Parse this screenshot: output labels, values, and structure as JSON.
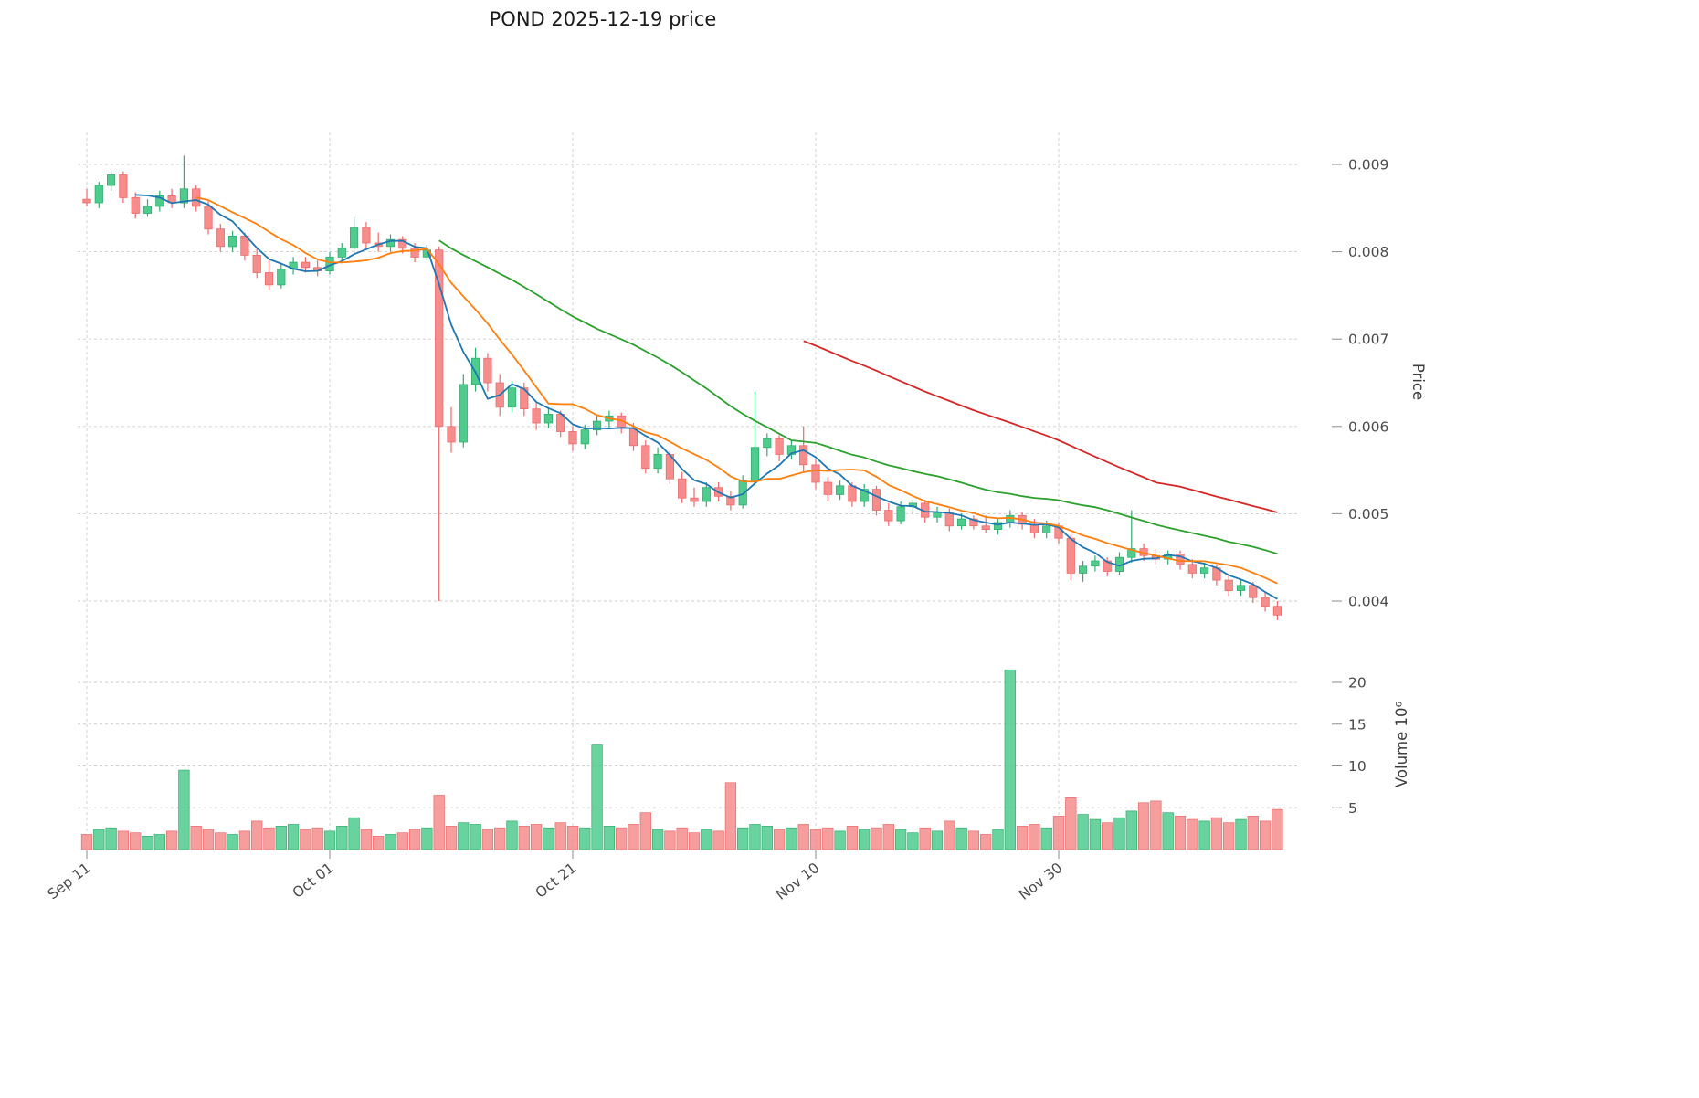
{
  "title": "POND  2025-12-19  price",
  "axes": {
    "price_label": "Price",
    "volume_label": "Volume  10⁶",
    "price_ticks": [
      0.004,
      0.005,
      0.006,
      0.007,
      0.008,
      0.009
    ],
    "volume_ticks": [
      5,
      10,
      15,
      20
    ],
    "x_ticks": [
      "Sep 11",
      "Oct 01",
      "Oct 21",
      "Nov 10",
      "Nov 30"
    ],
    "x_tick_indices": [
      0,
      20,
      40,
      60,
      80
    ]
  },
  "chart_data": {
    "type": "candlestick",
    "title": "POND 2025-12-19 price",
    "symbol": "POND",
    "frequency": "daily",
    "date_range": [
      "2025-09-11",
      "2025-12-18"
    ],
    "x_tick_dates": [
      "2025-09-11",
      "2025-10-01",
      "2025-10-21",
      "2025-11-10",
      "2025-11-30"
    ],
    "price_axis": {
      "label": "Price",
      "ticks": [
        0.004,
        0.005,
        0.006,
        0.007,
        0.008,
        0.009
      ],
      "range": [
        0.0036,
        0.0094
      ]
    },
    "volume_axis": {
      "label": "Volume 10⁶",
      "unit": 1000000,
      "ticks": [
        5,
        10,
        15,
        20
      ],
      "range": [
        0,
        23
      ]
    },
    "grid": true,
    "legend": false,
    "moving_averages": [
      {
        "window": 5,
        "color": "#1f77b4"
      },
      {
        "window": 10,
        "color": "#ff7f0e"
      },
      {
        "window": 30,
        "color": "#2ca02c"
      },
      {
        "window": 60,
        "color": "#d62728"
      }
    ],
    "colors": {
      "up": "#4ecb8d",
      "up_edge": "#2fae6e",
      "down": "#f58d8d",
      "down_edge": "#ec6a6a"
    },
    "ohlc": [
      [
        0.0086,
        0.00872,
        0.00852,
        0.00856
      ],
      [
        0.00856,
        0.0088,
        0.0085,
        0.00876
      ],
      [
        0.00876,
        0.00893,
        0.0087,
        0.00888
      ],
      [
        0.00888,
        0.00892,
        0.00856,
        0.00862
      ],
      [
        0.00862,
        0.00868,
        0.00838,
        0.00844
      ],
      [
        0.00844,
        0.0086,
        0.0084,
        0.00852
      ],
      [
        0.00852,
        0.0087,
        0.00846,
        0.00864
      ],
      [
        0.00864,
        0.00872,
        0.0085,
        0.00856
      ],
      [
        0.00856,
        0.0091,
        0.0085,
        0.00872
      ],
      [
        0.00872,
        0.00876,
        0.00846,
        0.00852
      ],
      [
        0.00852,
        0.00858,
        0.0082,
        0.00826
      ],
      [
        0.00826,
        0.00832,
        0.008,
        0.00806
      ],
      [
        0.00806,
        0.00824,
        0.008,
        0.00818
      ],
      [
        0.00818,
        0.00822,
        0.0079,
        0.00796
      ],
      [
        0.00796,
        0.00804,
        0.0077,
        0.00776
      ],
      [
        0.00776,
        0.0079,
        0.00756,
        0.00762
      ],
      [
        0.00762,
        0.00786,
        0.00758,
        0.0078
      ],
      [
        0.0078,
        0.00794,
        0.00774,
        0.00788
      ],
      [
        0.00788,
        0.00794,
        0.00776,
        0.00782
      ],
      [
        0.00782,
        0.0079,
        0.00772,
        0.00778
      ],
      [
        0.00778,
        0.008,
        0.00774,
        0.00794
      ],
      [
        0.00794,
        0.0081,
        0.00788,
        0.00804
      ],
      [
        0.00804,
        0.0084,
        0.00798,
        0.00828
      ],
      [
        0.00828,
        0.00834,
        0.00804,
        0.0081
      ],
      [
        0.0081,
        0.00822,
        0.008,
        0.00806
      ],
      [
        0.00806,
        0.0082,
        0.008,
        0.00814
      ],
      [
        0.00814,
        0.00818,
        0.00798,
        0.00804
      ],
      [
        0.00804,
        0.0081,
        0.00788,
        0.00794
      ],
      [
        0.00794,
        0.00808,
        0.0079,
        0.00802
      ],
      [
        0.00802,
        0.00806,
        0.004,
        0.006
      ],
      [
        0.006,
        0.00622,
        0.0057,
        0.00582
      ],
      [
        0.00582,
        0.0066,
        0.00576,
        0.00648
      ],
      [
        0.00648,
        0.0069,
        0.0064,
        0.00678
      ],
      [
        0.00678,
        0.00684,
        0.0064,
        0.0065
      ],
      [
        0.0065,
        0.0066,
        0.00612,
        0.00622
      ],
      [
        0.00622,
        0.00652,
        0.00616,
        0.00644
      ],
      [
        0.00644,
        0.0065,
        0.00612,
        0.0062
      ],
      [
        0.0062,
        0.00628,
        0.00596,
        0.00604
      ],
      [
        0.00604,
        0.00622,
        0.00598,
        0.00614
      ],
      [
        0.00614,
        0.00618,
        0.00588,
        0.00594
      ],
      [
        0.00594,
        0.006,
        0.00572,
        0.0058
      ],
      [
        0.0058,
        0.00602,
        0.00574,
        0.00596
      ],
      [
        0.00596,
        0.00612,
        0.0059,
        0.00606
      ],
      [
        0.00606,
        0.00618,
        0.00598,
        0.00612
      ],
      [
        0.00612,
        0.00616,
        0.00592,
        0.00598
      ],
      [
        0.00598,
        0.00604,
        0.00572,
        0.00578
      ],
      [
        0.00578,
        0.00584,
        0.00546,
        0.00552
      ],
      [
        0.00552,
        0.00576,
        0.00546,
        0.00568
      ],
      [
        0.00568,
        0.00572,
        0.00534,
        0.0054
      ],
      [
        0.0054,
        0.00548,
        0.00512,
        0.00518
      ],
      [
        0.00518,
        0.0053,
        0.00508,
        0.00514
      ],
      [
        0.00514,
        0.00536,
        0.00508,
        0.0053
      ],
      [
        0.0053,
        0.00536,
        0.00514,
        0.0052
      ],
      [
        0.0052,
        0.00526,
        0.00504,
        0.0051
      ],
      [
        0.0051,
        0.00544,
        0.00506,
        0.00538
      ],
      [
        0.00538,
        0.0064,
        0.00532,
        0.00576
      ],
      [
        0.00576,
        0.00592,
        0.00566,
        0.00586
      ],
      [
        0.00586,
        0.0059,
        0.0056,
        0.00568
      ],
      [
        0.00568,
        0.00584,
        0.00562,
        0.00578
      ],
      [
        0.00578,
        0.006,
        0.00548,
        0.00556
      ],
      [
        0.00556,
        0.00562,
        0.00528,
        0.00536
      ],
      [
        0.00536,
        0.00542,
        0.00514,
        0.00522
      ],
      [
        0.00522,
        0.00538,
        0.00516,
        0.00532
      ],
      [
        0.00532,
        0.00536,
        0.00508,
        0.00514
      ],
      [
        0.00514,
        0.00534,
        0.00508,
        0.00528
      ],
      [
        0.00528,
        0.00532,
        0.00498,
        0.00504
      ],
      [
        0.00504,
        0.00512,
        0.00486,
        0.00492
      ],
      [
        0.00492,
        0.00514,
        0.00488,
        0.00508
      ],
      [
        0.00508,
        0.00516,
        0.005,
        0.00512
      ],
      [
        0.00512,
        0.00516,
        0.0049,
        0.00496
      ],
      [
        0.00496,
        0.00508,
        0.0049,
        0.00502
      ],
      [
        0.00502,
        0.00506,
        0.0048,
        0.00486
      ],
      [
        0.00486,
        0.005,
        0.00482,
        0.00494
      ],
      [
        0.00494,
        0.00498,
        0.00482,
        0.00486
      ],
      [
        0.00486,
        0.00498,
        0.00478,
        0.00482
      ],
      [
        0.00482,
        0.00494,
        0.00476,
        0.0049
      ],
      [
        0.0049,
        0.00504,
        0.00484,
        0.00498
      ],
      [
        0.00498,
        0.00502,
        0.00482,
        0.00488
      ],
      [
        0.00488,
        0.00494,
        0.00472,
        0.00478
      ],
      [
        0.00478,
        0.00492,
        0.00472,
        0.00486
      ],
      [
        0.00486,
        0.0049,
        0.00466,
        0.00472
      ],
      [
        0.00472,
        0.00476,
        0.00424,
        0.00432
      ],
      [
        0.00432,
        0.00446,
        0.00422,
        0.0044
      ],
      [
        0.0044,
        0.00452,
        0.00434,
        0.00446
      ],
      [
        0.00446,
        0.0045,
        0.00428,
        0.00434
      ],
      [
        0.00434,
        0.00456,
        0.0043,
        0.0045
      ],
      [
        0.0045,
        0.00504,
        0.00444,
        0.0046
      ],
      [
        0.0046,
        0.00466,
        0.00446,
        0.00452
      ],
      [
        0.00452,
        0.0046,
        0.00442,
        0.00448
      ],
      [
        0.00448,
        0.00458,
        0.00442,
        0.00454
      ],
      [
        0.00454,
        0.00458,
        0.00436,
        0.00442
      ],
      [
        0.00442,
        0.00448,
        0.00426,
        0.00432
      ],
      [
        0.00432,
        0.00444,
        0.00426,
        0.00438
      ],
      [
        0.00438,
        0.00442,
        0.00418,
        0.00424
      ],
      [
        0.00424,
        0.0043,
        0.00406,
        0.00412
      ],
      [
        0.00412,
        0.00424,
        0.00406,
        0.00418
      ],
      [
        0.00418,
        0.00422,
        0.00398,
        0.00404
      ],
      [
        0.00404,
        0.0041,
        0.00388,
        0.00394
      ],
      [
        0.00394,
        0.004,
        0.00378,
        0.00384
      ]
    ],
    "volume": [
      1.8,
      2.4,
      2.6,
      2.2,
      2.0,
      1.6,
      1.8,
      2.2,
      9.5,
      2.8,
      2.4,
      2.0,
      1.8,
      2.2,
      3.4,
      2.6,
      2.8,
      3.0,
      2.4,
      2.6,
      2.2,
      2.8,
      3.8,
      2.4,
      1.6,
      1.8,
      2.0,
      2.4,
      2.6,
      6.5,
      2.8,
      3.2,
      3.0,
      2.4,
      2.6,
      3.4,
      2.8,
      3.0,
      2.6,
      3.2,
      2.8,
      2.6,
      12.5,
      2.8,
      2.6,
      3.0,
      4.4,
      2.4,
      2.2,
      2.6,
      2.0,
      2.4,
      2.2,
      8.0,
      2.6,
      3.0,
      2.8,
      2.4,
      2.6,
      3.0,
      2.4,
      2.6,
      2.2,
      2.8,
      2.4,
      2.6,
      3.0,
      2.4,
      2.0,
      2.6,
      2.2,
      3.4,
      2.6,
      2.2,
      1.8,
      2.4,
      21.5,
      2.8,
      3.0,
      2.6,
      4.0,
      6.2,
      4.2,
      3.6,
      3.2,
      3.8,
      4.6,
      5.6,
      5.8,
      4.4,
      4.0,
      3.6,
      3.4,
      3.8,
      3.2,
      3.6,
      4.0,
      3.4,
      4.8
    ]
  }
}
